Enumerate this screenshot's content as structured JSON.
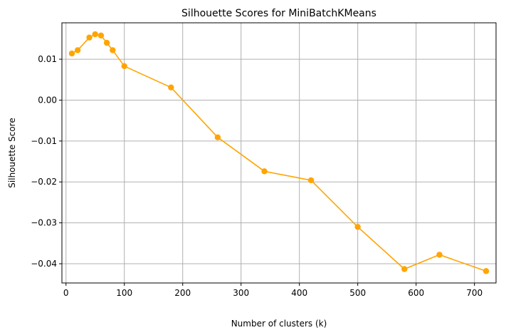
{
  "chart_data": {
    "type": "line",
    "title": "Silhouette Scores for MiniBatchKMeans",
    "xlabel": "Number of clusters (k)",
    "ylabel": "Silhouette Score",
    "x": [
      10,
      20,
      40,
      50,
      60,
      70,
      80,
      100,
      180,
      260,
      340,
      420,
      500,
      580,
      640,
      720
    ],
    "series": [
      {
        "values": [
          0.0114,
          0.0122,
          0.0153,
          0.0161,
          0.0158,
          0.014,
          0.0122,
          0.0083,
          0.0031,
          -0.0091,
          -0.0174,
          -0.0196,
          -0.031,
          -0.0413,
          -0.0378,
          -0.0418
        ]
      }
    ],
    "xlim": [
      -7,
      737
    ],
    "ylim": [
      -0.0447,
      0.0189
    ],
    "xticks": [
      0,
      100,
      200,
      300,
      400,
      500,
      600,
      700
    ],
    "xtick_labels": [
      "0",
      "100",
      "200",
      "300",
      "400",
      "500",
      "600",
      "700"
    ],
    "yticks": [
      0.01,
      0.0,
      -0.01,
      -0.02,
      -0.03,
      -0.04
    ],
    "ytick_labels": [
      "0.01",
      "0.00",
      "−0.01",
      "−0.02",
      "−0.03",
      "−0.04"
    ],
    "grid": true,
    "color": "#ffa500",
    "marker": "circle"
  }
}
